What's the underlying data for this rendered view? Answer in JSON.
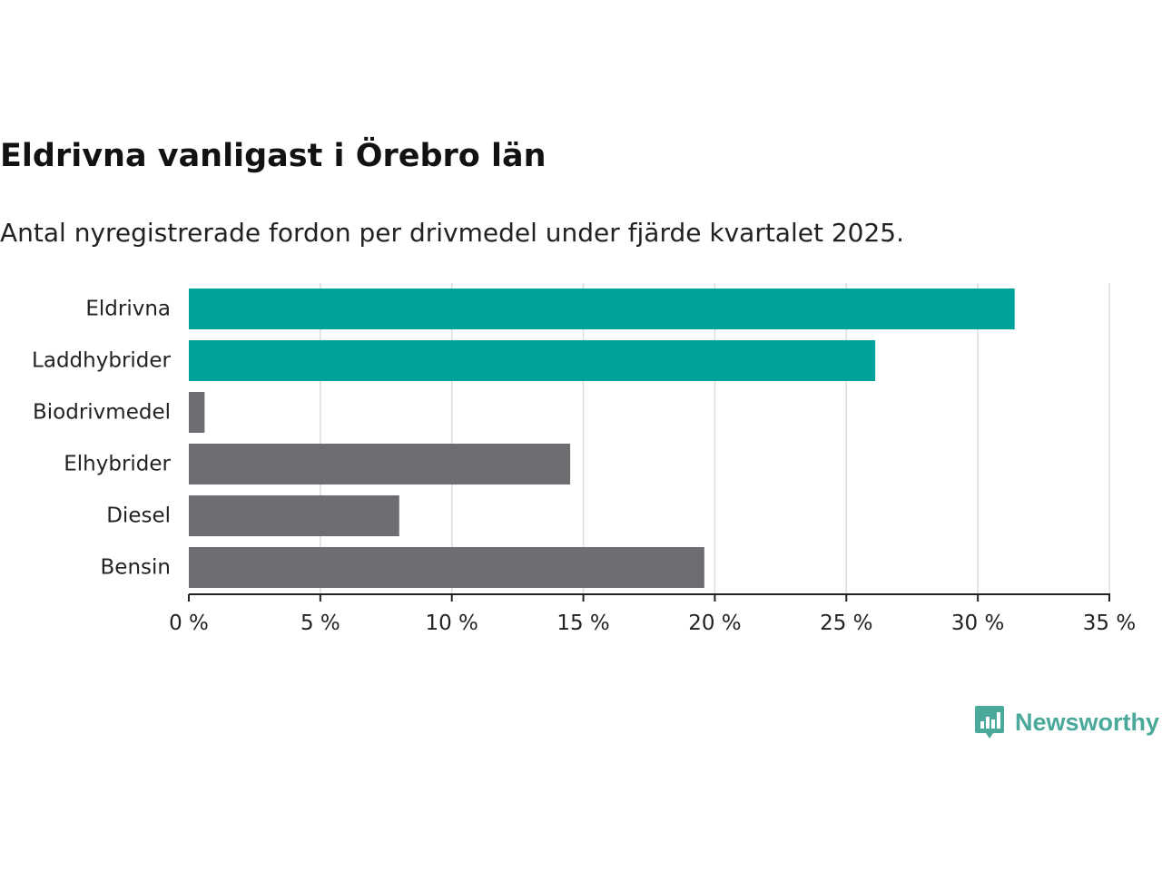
{
  "colors": {
    "highlight": "#00a39a",
    "default": "#6e6d72",
    "grid": "#dddddd",
    "axis": "#222222",
    "brand": "#4aa99a"
  },
  "brand": {
    "name": "Newsworthy",
    "icon": "newsworthy-logo-icon"
  },
  "chart_data": {
    "type": "bar",
    "orientation": "horizontal",
    "title": "Eldrivna vanligast i Örebro län",
    "subtitle": "Antal nyregistrerade fordon per drivmedel under fjärde kvartalet 2025.",
    "xlabel": "",
    "ylabel": "",
    "unit": "%",
    "xlim": [
      0,
      35
    ],
    "xticks": [
      0,
      5,
      10,
      15,
      20,
      25,
      30,
      35
    ],
    "xtick_labels": [
      "0 %",
      "5 %",
      "10 %",
      "15 %",
      "20 %",
      "25 %",
      "30 %",
      "35 %"
    ],
    "grid": true,
    "legend": null,
    "categories": [
      "Eldrivna",
      "Laddhybrider",
      "Biodrivmedel",
      "Elhybrider",
      "Diesel",
      "Bensin"
    ],
    "values": [
      31.4,
      26.1,
      0.6,
      14.5,
      8.0,
      19.6
    ],
    "highlighted": [
      true,
      true,
      false,
      false,
      false,
      false
    ]
  }
}
